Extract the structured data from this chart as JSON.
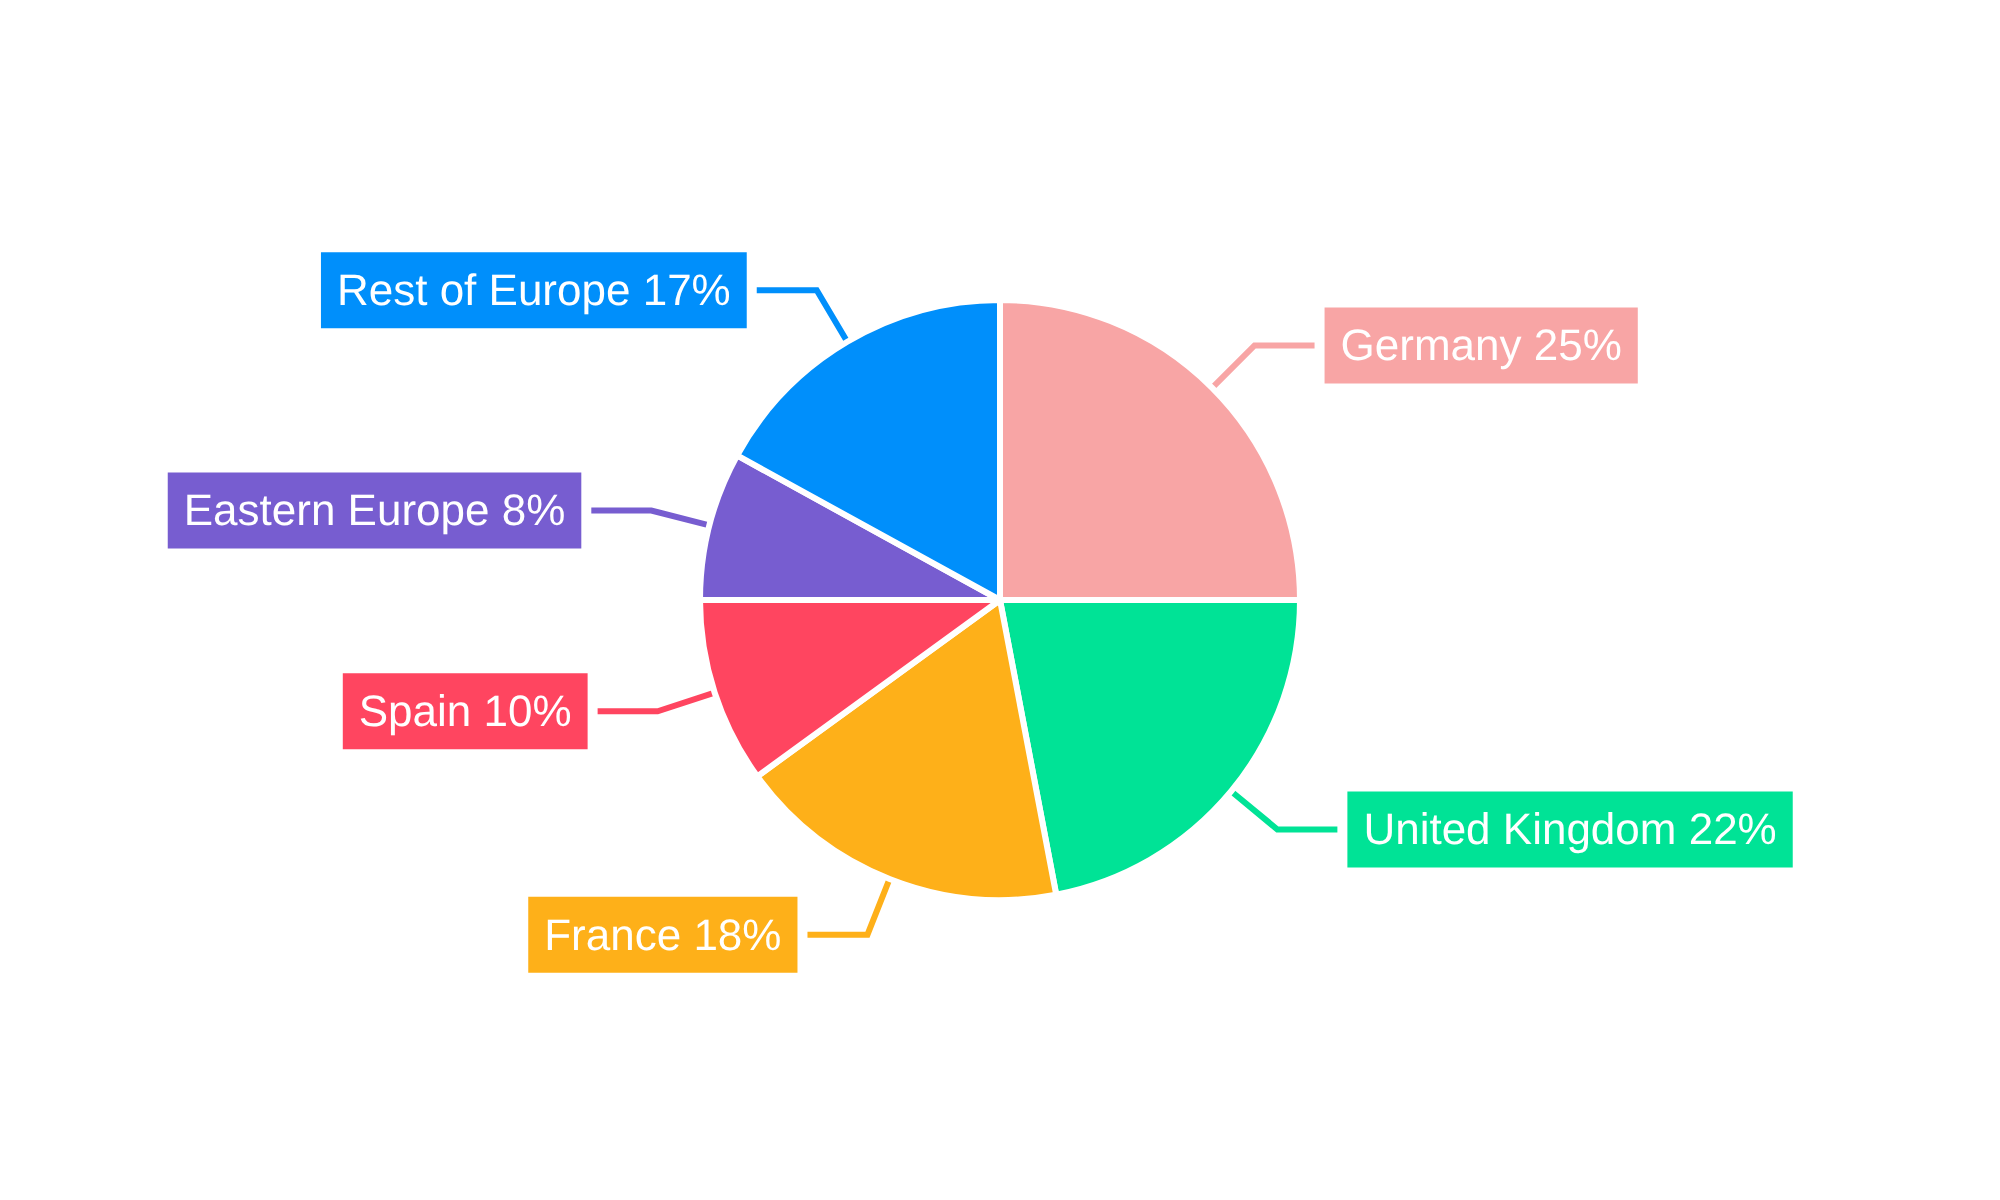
{
  "chart_data": {
    "type": "pie",
    "categories": [
      "Germany",
      "United Kingdom",
      "France",
      "Spain",
      "Eastern Europe",
      "Rest of Europe"
    ],
    "values": [
      25,
      22,
      18,
      10,
      8,
      17
    ],
    "value_labels": [
      "25%",
      "22%",
      "18%",
      "10%",
      "8%",
      "17%"
    ],
    "colors": [
      "#f8a5a5",
      "#00e396",
      "#feb019",
      "#ff4560",
      "#775dd0",
      "#008ffb"
    ],
    "legend": false
  }
}
